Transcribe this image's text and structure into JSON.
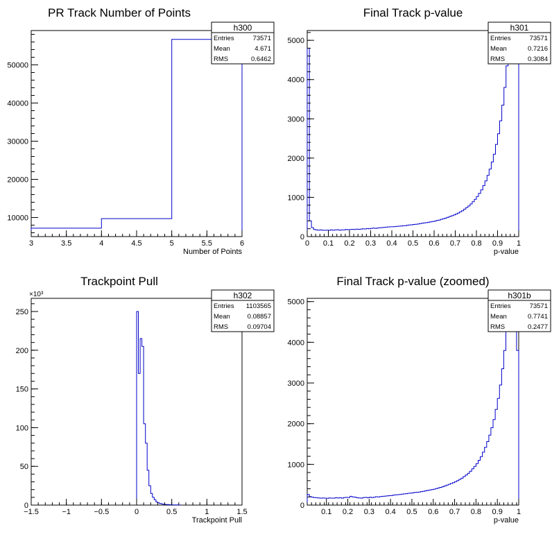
{
  "chart_data": [
    {
      "type": "histogram",
      "title": "PR Track Number of Points",
      "xlabel": "Number of Points",
      "ylabel": "",
      "xlim": [
        3,
        6
      ],
      "ylim": [
        5000,
        59000
      ],
      "xticks": {
        "major": [
          3,
          3.5,
          4,
          4.5,
          5,
          5.5,
          6
        ],
        "labels": [
          "3",
          "3.5",
          "4",
          "4.5",
          "5",
          "5.5",
          "6"
        ]
      },
      "yticks": {
        "major": [
          10000,
          20000,
          30000,
          40000,
          50000
        ],
        "labels": [
          "10000",
          "20000",
          "30000",
          "40000",
          "50000"
        ]
      },
      "bins": [
        3,
        4,
        5,
        6
      ],
      "values": [
        7200,
        9700,
        56700
      ],
      "stats": {
        "name": "h300",
        "rows": [
          [
            "Entries",
            "73571"
          ],
          [
            "Mean",
            "4.671"
          ],
          [
            "RMS",
            "0.6462"
          ]
        ]
      }
    },
    {
      "type": "histogram",
      "title": "Final Track p-value",
      "xlabel": "p-value",
      "ylabel": "",
      "xlim": [
        0,
        1
      ],
      "ylim": [
        0,
        5250
      ],
      "xticks": {
        "major": [
          0,
          0.1,
          0.2,
          0.3,
          0.4,
          0.5,
          0.6,
          0.7,
          0.8,
          0.9,
          1
        ],
        "labels": [
          "0",
          "0.1",
          "0.2",
          "0.3",
          "0.4",
          "0.5",
          "0.6",
          "0.7",
          "0.8",
          "0.9",
          "1"
        ]
      },
      "yticks": {
        "major": [
          0,
          1000,
          2000,
          3000,
          4000,
          5000
        ],
        "labels": [
          "0",
          "1000",
          "2000",
          "3000",
          "4000",
          "5000"
        ]
      },
      "bin_width": 0.01,
      "values": [
        4800,
        400,
        230,
        180,
        170,
        165,
        170,
        160,
        160,
        165,
        160,
        170,
        165,
        170,
        175,
        165,
        170,
        170,
        180,
        175,
        180,
        185,
        180,
        190,
        185,
        190,
        200,
        195,
        205,
        200,
        210,
        215,
        210,
        220,
        225,
        230,
        235,
        240,
        245,
        250,
        250,
        255,
        260,
        265,
        270,
        275,
        280,
        290,
        295,
        300,
        310,
        315,
        320,
        330,
        340,
        350,
        355,
        365,
        375,
        385,
        395,
        410,
        420,
        440,
        455,
        470,
        490,
        510,
        530,
        550,
        575,
        600,
        630,
        660,
        700,
        740,
        780,
        830,
        890,
        950,
        1020,
        1100,
        1190,
        1300,
        1420,
        1560,
        1720,
        1900,
        2100,
        2350,
        2620,
        2950,
        3350,
        3800,
        4350,
        4900,
        5200,
        5200,
        5200,
        5200
      ],
      "stats": {
        "name": "h301",
        "rows": [
          [
            "Entries",
            "73571"
          ],
          [
            "Mean",
            "0.7216"
          ],
          [
            "RMS",
            "0.3084"
          ]
        ]
      }
    },
    {
      "type": "histogram",
      "title": "Trackpoint Pull",
      "xlabel": "Trackpoint Pull",
      "ylabel": "",
      "multiplier_label": "×10³",
      "xlim": [
        -1.5,
        1.5
      ],
      "ylim": [
        0,
        267
      ],
      "xticks": {
        "major": [
          -1.5,
          -1,
          -0.5,
          0,
          0.5,
          1,
          1.5
        ],
        "labels": [
          "−1.5",
          "−1",
          "−0.5",
          "0",
          "0.5",
          "1",
          "1.5"
        ]
      },
      "yticks": {
        "major": [
          0,
          50,
          100,
          150,
          200,
          250
        ],
        "labels": [
          "0",
          "50",
          "100",
          "150",
          "200",
          "250"
        ]
      },
      "bin_start": 0,
      "bin_width": 0.025,
      "values": [
        250,
        170,
        215,
        205,
        105,
        80,
        45,
        25,
        15,
        10,
        7,
        4,
        3,
        2,
        1.5,
        1,
        0.8,
        0.6,
        0.5,
        0.4,
        0.3,
        0.3,
        0.2,
        0.2,
        0.1
      ],
      "stats": {
        "name": "h302",
        "rows": [
          [
            "Entries",
            "1103565"
          ],
          [
            "Mean",
            "0.08857"
          ],
          [
            "RMS",
            "0.09704"
          ]
        ]
      }
    },
    {
      "type": "histogram",
      "title": "Final Track p-value (zoomed)",
      "xlabel": "p-value",
      "ylabel": "",
      "xlim": [
        0.01,
        1
      ],
      "ylim": [
        0,
        5080
      ],
      "xticks": {
        "major": [
          0.1,
          0.2,
          0.3,
          0.4,
          0.5,
          0.6,
          0.7,
          0.8,
          0.9,
          1
        ],
        "labels": [
          "0.1",
          "0.2",
          "0.3",
          "0.4",
          "0.5",
          "0.6",
          "0.7",
          "0.8",
          "0.9",
          "1"
        ]
      },
      "yticks": {
        "major": [
          0,
          1000,
          2000,
          3000,
          4000,
          5000
        ],
        "labels": [
          "0",
          "1000",
          "2000",
          "3000",
          "4000",
          "5000"
        ]
      },
      "bin_width": 0.01,
      "values": [
        260,
        210,
        195,
        185,
        180,
        175,
        170,
        175,
        170,
        165,
        175,
        170,
        170,
        180,
        175,
        180,
        170,
        185,
        190,
        185,
        215,
        200,
        195,
        180,
        175,
        170,
        185,
        190,
        180,
        195,
        185,
        195,
        205,
        200,
        210,
        215,
        220,
        225,
        230,
        235,
        245,
        250,
        255,
        260,
        270,
        275,
        280,
        290,
        295,
        300,
        310,
        315,
        320,
        330,
        340,
        350,
        360,
        370,
        380,
        390,
        405,
        420,
        435,
        450,
        470,
        490,
        510,
        530,
        550,
        575,
        600,
        630,
        660,
        700,
        740,
        780,
        830,
        890,
        950,
        1020,
        1100,
        1190,
        1300,
        1420,
        1560,
        1720,
        1900,
        2100,
        2350,
        2620,
        2950,
        3350,
        3800,
        4350,
        4900,
        5080,
        5080,
        5080,
        3800
      ],
      "stats": {
        "name": "h301b",
        "rows": [
          [
            "Entries",
            "73571"
          ],
          [
            "Mean",
            "0.7741"
          ],
          [
            "RMS",
            "0.2477"
          ]
        ]
      }
    }
  ]
}
